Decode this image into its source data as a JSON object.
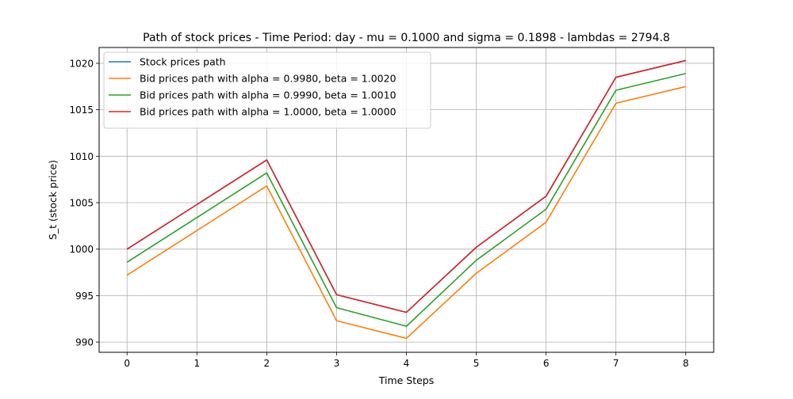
{
  "chart_data": {
    "type": "line",
    "title": "Path of stock prices - Time Period: day - mu = 0.1000 and sigma = 0.1898 - lambdas = 2794.8",
    "xlabel": "Time Steps",
    "ylabel": "S_t (stock price)",
    "x": [
      0,
      1,
      2,
      3,
      4,
      5,
      6,
      7,
      8
    ],
    "xlim": [
      -0.4,
      8.4
    ],
    "ylim": [
      988.9,
      1021.7
    ],
    "xticks": [
      0,
      1,
      2,
      3,
      4,
      5,
      6,
      7,
      8
    ],
    "yticks": [
      990,
      995,
      1000,
      1005,
      1010,
      1015,
      1020
    ],
    "grid": true,
    "legend_position": "upper left",
    "series": [
      {
        "name": "Stock prices path",
        "color": "#1f77b4",
        "values": [
          1000.0,
          1004.8,
          1009.6,
          995.1,
          993.2,
          1000.2,
          1005.7,
          1018.5,
          1020.3
        ]
      },
      {
        "name": "Bid prices path with alpha = 0.9980, beta = 1.0020",
        "color": "#ff7f0e",
        "values": [
          997.2,
          1002.0,
          1006.8,
          992.3,
          990.4,
          997.4,
          1002.9,
          1015.7,
          1017.5
        ]
      },
      {
        "name": "Bid prices path with alpha = 0.9990, beta = 1.0010",
        "color": "#2ca02c",
        "values": [
          998.6,
          1003.4,
          1008.2,
          993.7,
          991.7,
          998.8,
          1004.3,
          1017.1,
          1018.9
        ]
      },
      {
        "name": "Bid prices path with alpha = 1.0000, beta = 1.0000",
        "color": "#d62728",
        "values": [
          1000.0,
          1004.8,
          1009.6,
          995.1,
          993.2,
          1000.2,
          1005.7,
          1018.5,
          1020.3
        ]
      }
    ]
  }
}
